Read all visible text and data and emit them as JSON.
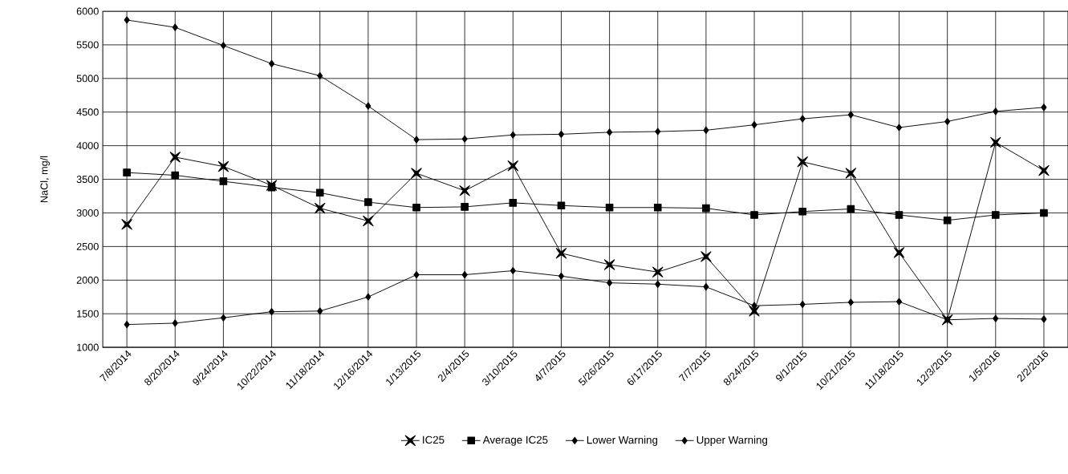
{
  "chart_data": {
    "type": "line",
    "ylabel": "NaCl, mg/l",
    "categories": [
      "7/8/2014",
      "8/20/2014",
      "9/24/2014",
      "10/22/2014",
      "11/18/2014",
      "12/16/2014",
      "1/13/2015",
      "2/4/2015",
      "3/10/2015",
      "4/7/2015",
      "5/26/2015",
      "6/17/2015",
      "7/7/2015",
      "8/24/2015",
      "9/1/2015",
      "10/21/2015",
      "11/18/2015",
      "12/3/2015",
      "1/5/2016",
      "2/2/2016"
    ],
    "series": [
      {
        "name": "IC25",
        "color": "#000000",
        "marker": "star",
        "values": [
          2830,
          3830,
          3690,
          3410,
          3070,
          2880,
          3590,
          3330,
          3700,
          2400,
          2230,
          2120,
          2350,
          1540,
          3760,
          3590,
          2410,
          1410,
          4050,
          3630
        ]
      },
      {
        "name": "Average IC25",
        "color": "#000000",
        "marker": "square",
        "values": [
          3600,
          3560,
          3470,
          3380,
          3300,
          3160,
          3080,
          3090,
          3150,
          3110,
          3080,
          3080,
          3070,
          2970,
          3020,
          3060,
          2970,
          2890,
          2970,
          3000
        ]
      },
      {
        "name": "Lower Warning",
        "color": "#000000",
        "marker": "diamond",
        "values": [
          1340,
          1360,
          1440,
          1530,
          1540,
          1750,
          2080,
          2080,
          2140,
          2060,
          1960,
          1940,
          1900,
          1620,
          1640,
          1670,
          1680,
          1410,
          1430,
          1420
        ]
      },
      {
        "name": "Upper Warning",
        "color": "#000000",
        "marker": "diamond",
        "values": [
          5870,
          5760,
          5490,
          5220,
          5040,
          4590,
          4090,
          4100,
          4160,
          4170,
          4200,
          4210,
          4230,
          4310,
          4400,
          4460,
          4270,
          4360,
          4510,
          4570
        ]
      }
    ],
    "ylim": [
      1000,
      6000
    ],
    "yticks": [
      1000,
      1500,
      2000,
      2500,
      3000,
      3500,
      4000,
      4500,
      5000,
      5500,
      6000
    ],
    "grid": true,
    "legend": "bottom",
    "line_style": "solid"
  }
}
